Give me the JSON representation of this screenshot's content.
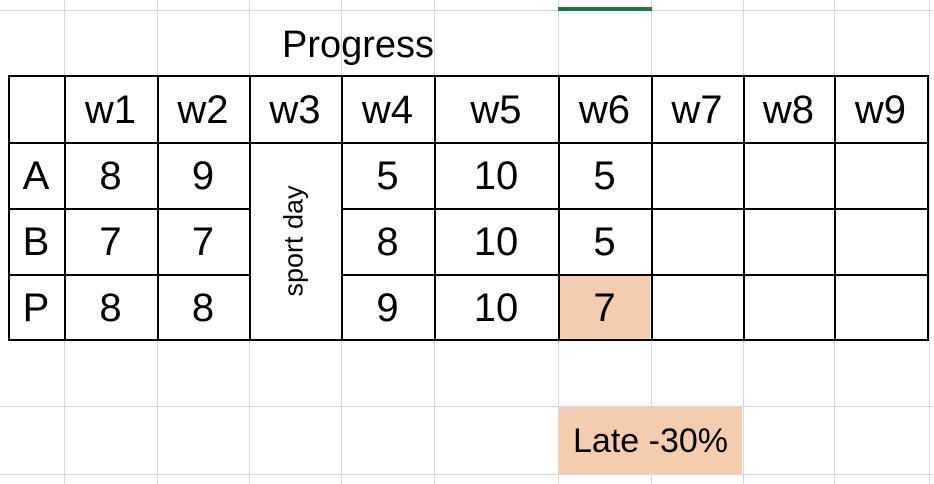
{
  "sheet": {
    "title": "Progress",
    "weeks": [
      "w1",
      "w2",
      "w3",
      "w4",
      "w5",
      "w6",
      "w7",
      "w8",
      "w9"
    ],
    "rows": [
      {
        "label": "A",
        "values": [
          "8",
          "9",
          "",
          "5",
          "10",
          "5",
          "",
          "",
          ""
        ]
      },
      {
        "label": "B",
        "values": [
          "7",
          "7",
          "",
          "8",
          "10",
          "5",
          "",
          "",
          ""
        ]
      },
      {
        "label": "P",
        "values": [
          "8",
          "8",
          "",
          "9",
          "10",
          "7",
          "",
          "",
          ""
        ]
      }
    ],
    "merged_note": "sport day",
    "late_label": "Late -30%",
    "highlight_color": "#f4ccb0",
    "selection_color": "#217346"
  }
}
